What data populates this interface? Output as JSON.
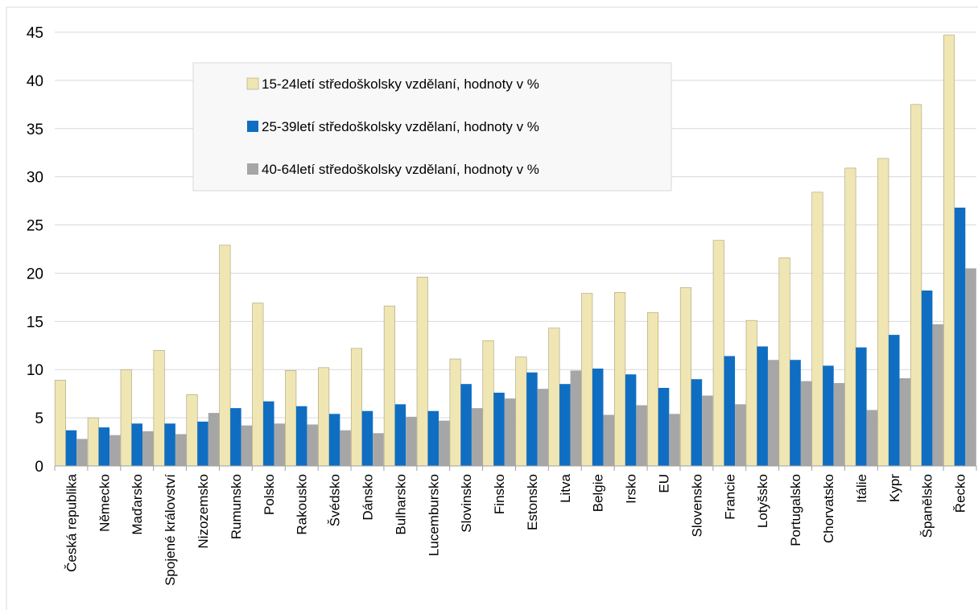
{
  "chart_data": {
    "type": "bar",
    "title": "",
    "xlabel": "",
    "ylabel": "",
    "ylim": [
      0,
      45
    ],
    "yticks": [
      0,
      5,
      10,
      15,
      20,
      25,
      30,
      35,
      40,
      45
    ],
    "grid": true,
    "legend_position": "top-left inside plot",
    "categories": [
      "Česká republika",
      "Německo",
      "Maďarsko",
      "Spojené království",
      "Nizozemsko",
      "Rumunsko",
      "Polsko",
      "Rakousko",
      "Švédsko",
      "Dánsko",
      "Bulharsko",
      "Lucembursko",
      "Slovinsko",
      "Finsko",
      "Estonsko",
      "Litva",
      "Belgie",
      "Irsko",
      "EU",
      "Slovensko",
      "Francie",
      "Lotyšsko",
      "Portugalsko",
      "Chorvatsko",
      "Itálie",
      "Kypr",
      "Španělsko",
      "Řecko"
    ],
    "series": [
      {
        "name": "15-24letí středoškolsky vzdělaní, hodnoty v %",
        "color": "#efe6b3",
        "values": [
          8.9,
          5.0,
          10.0,
          12.0,
          7.4,
          22.9,
          16.9,
          9.9,
          10.2,
          12.2,
          16.6,
          19.6,
          11.1,
          13.0,
          11.3,
          14.3,
          17.9,
          18.0,
          15.9,
          18.5,
          23.4,
          15.1,
          21.6,
          28.4,
          30.9,
          31.9,
          37.5,
          44.7
        ]
      },
      {
        "name": "25-39letí středoškolsky vzdělaní, hodnoty v %",
        "color": "#0f6ec2",
        "values": [
          3.7,
          4.0,
          4.4,
          4.4,
          4.6,
          6.0,
          6.7,
          6.2,
          5.4,
          5.7,
          6.4,
          5.7,
          8.5,
          7.6,
          9.7,
          8.5,
          10.1,
          9.5,
          8.1,
          9.0,
          11.4,
          12.4,
          11.0,
          10.4,
          12.3,
          13.6,
          18.2,
          26.8
        ]
      },
      {
        "name": "40-64letí středoškolsky vzdělaní, hodnoty v %",
        "color": "#a6a6a6",
        "values": [
          2.8,
          3.2,
          3.6,
          3.3,
          5.5,
          4.2,
          4.4,
          4.3,
          3.7,
          3.4,
          5.1,
          4.7,
          6.0,
          7.0,
          8.0,
          9.9,
          5.3,
          6.3,
          5.4,
          7.3,
          6.4,
          11.0,
          8.8,
          8.6,
          5.8,
          9.1,
          14.7,
          20.5
        ]
      }
    ]
  }
}
